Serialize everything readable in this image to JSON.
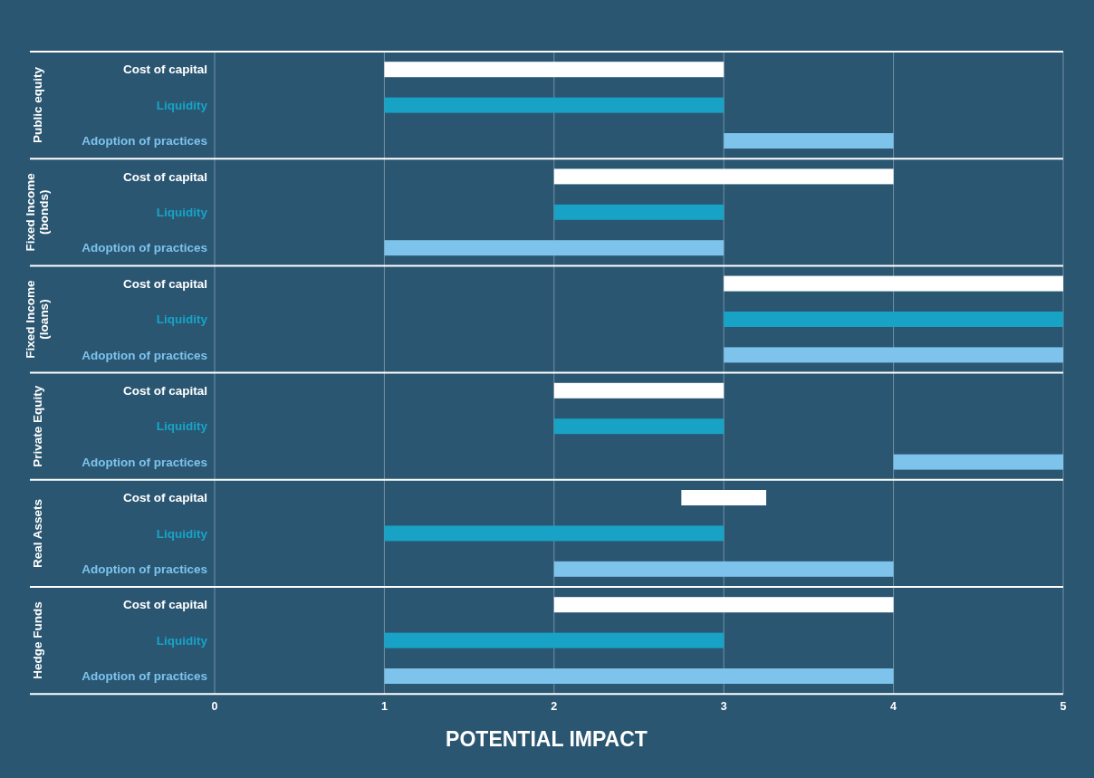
{
  "chart_data": [
    {
      "type": "bar",
      "orientation": "horizontal",
      "title": "Public equity",
      "categories": [
        "Cost of capital",
        "Liquidity",
        "Adoption of practices"
      ],
      "base": [
        1,
        1,
        3
      ],
      "values": [
        2,
        2,
        1
      ],
      "colors": [
        "#ffffff",
        "#18a3c6",
        "#7dc3ec"
      ],
      "xlim": [
        0,
        5
      ],
      "xticks": [
        0,
        1,
        2,
        3,
        4,
        5
      ],
      "grid": "x",
      "tick_labels": "y"
    },
    {
      "type": "bar",
      "orientation": "horizontal",
      "title": "Fixed Income (bonds)",
      "categories": [
        "Cost of capital",
        "Liquidity",
        "Adoption of practices"
      ],
      "base": [
        2,
        2,
        1
      ],
      "values": [
        2,
        1,
        2
      ],
      "colors": [
        "#ffffff",
        "#18a3c6",
        "#7dc3ec"
      ],
      "xlim": [
        0,
        5
      ],
      "xticks": [
        0,
        1,
        2,
        3,
        4,
        5
      ],
      "grid": "x",
      "tick_labels": "y"
    },
    {
      "type": "bar",
      "orientation": "horizontal",
      "title": "Fixed Income (loans)",
      "categories": [
        "Cost of capital",
        "Liquidity",
        "Adoption of practices"
      ],
      "base": [
        3,
        3,
        3
      ],
      "values": [
        2,
        2,
        2
      ],
      "colors": [
        "#ffffff",
        "#18a3c6",
        "#7dc3ec"
      ],
      "xlim": [
        0,
        5
      ],
      "xticks": [
        0,
        1,
        2,
        3,
        4,
        5
      ],
      "grid": "x",
      "tick_labels": "y"
    },
    {
      "type": "bar",
      "orientation": "horizontal",
      "title": "Private Equity",
      "categories": [
        "Cost of capital",
        "Liquidity",
        "Adoption of practices"
      ],
      "base": [
        2,
        2,
        4
      ],
      "values": [
        1,
        1,
        1
      ],
      "colors": [
        "#ffffff",
        "#18a3c6",
        "#7dc3ec"
      ],
      "xlim": [
        0,
        5
      ],
      "xticks": [
        0,
        1,
        2,
        3,
        4,
        5
      ],
      "grid": "x",
      "tick_labels": "y"
    },
    {
      "type": "bar",
      "orientation": "horizontal",
      "title": "Real Assets",
      "categories": [
        "Cost of capital",
        "Liquidity",
        "Adoption of practices"
      ],
      "base": [
        2.75,
        1,
        2
      ],
      "values": [
        0.5,
        2,
        2
      ],
      "colors": [
        "#ffffff",
        "#18a3c6",
        "#7dc3ec"
      ],
      "xlim": [
        0,
        5
      ],
      "xticks": [
        0,
        1,
        2,
        3,
        4,
        5
      ],
      "grid": "x",
      "tick_labels": "y"
    },
    {
      "type": "bar",
      "orientation": "horizontal",
      "title": "Hedge Funds",
      "xlabel": "POTENTIAL IMPACT",
      "categories": [
        "Cost of capital",
        "Liquidity",
        "Adoption of practices"
      ],
      "base": [
        2,
        1,
        1
      ],
      "values": [
        2,
        2,
        3
      ],
      "colors": [
        "#ffffff",
        "#18a3c6",
        "#7dc3ec"
      ],
      "xlim": [
        0,
        5
      ],
      "xticks": [
        0,
        1,
        2,
        3,
        4,
        5
      ],
      "grid": "x"
    }
  ]
}
